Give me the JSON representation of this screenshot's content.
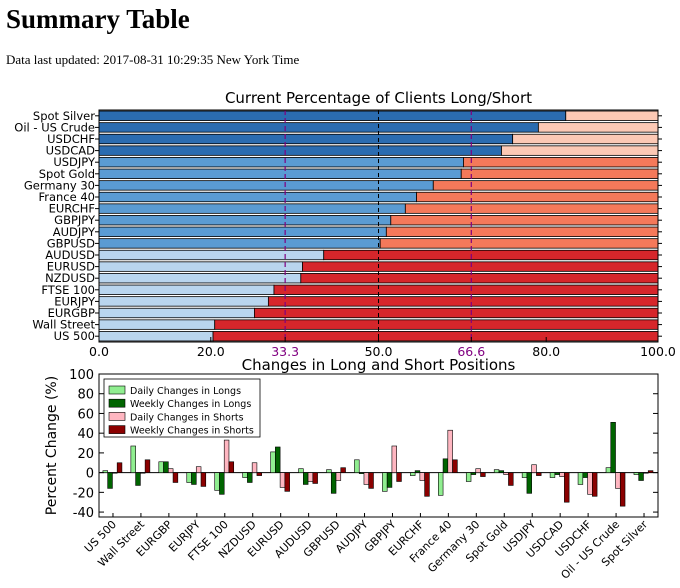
{
  "page": {
    "title": "Summary Table",
    "updated_label": "Data last updated:",
    "updated_value": "2017-08-31 10:29:35 New York Time"
  },
  "colors": {
    "long_dark": "#2b6cb0",
    "long_mid": "#5a9bd3",
    "long_light": "#b9d5ee",
    "short_light": "#fcc9b5",
    "short_mid": "#f4795a",
    "short_dark": "#d6262b",
    "daily_longs": "#90ee90",
    "weekly_longs": "#006400",
    "daily_shorts": "#ffb6c1",
    "weekly_shorts": "#8b0000",
    "marker_lines": "#800080"
  },
  "chart_data": [
    {
      "type": "bar",
      "orientation": "horizontal",
      "stacked": true,
      "title": "Current Percentage of Clients Long/Short",
      "categories": [
        "Spot Silver",
        "Oil - US Crude",
        "USDCHF",
        "USDCAD",
        "USDJPY",
        "Spot Gold",
        "Germany 30",
        "France 40",
        "EURCHF",
        "GBPJPY",
        "AUDJPY",
        "GBPUSD",
        "AUDUSD",
        "EURUSD",
        "NZDUSD",
        "FTSE 100",
        "EURJPY",
        "EURGBP",
        "Wall Street",
        "US 500"
      ],
      "long_values": [
        83.5,
        78.6,
        74.0,
        72.0,
        65.2,
        64.8,
        59.8,
        56.8,
        54.8,
        52.2,
        51.4,
        50.3,
        40.2,
        36.4,
        36.1,
        31.3,
        30.3,
        27.8,
        20.7,
        20.4
      ],
      "xlim": [
        0,
        100
      ],
      "xticks": [
        "0.0",
        "20.0",
        "33.3",
        "50.0",
        "66.6",
        "80.0",
        "100.0"
      ],
      "xtick_values": [
        0,
        20,
        33.3,
        50,
        66.6,
        80,
        100
      ],
      "highlight_ticks": [
        33.3,
        66.6
      ],
      "reference_line": 50,
      "grid": false
    },
    {
      "type": "bar",
      "title": "Changes in Long and Short Positions",
      "ylabel": "Percent Change (%)",
      "ylim": [
        -45,
        100
      ],
      "yticks": [
        "-40",
        "-20",
        "0",
        "20",
        "40",
        "60",
        "80",
        "100"
      ],
      "ytick_values": [
        -40,
        -20,
        0,
        20,
        40,
        60,
        80,
        100
      ],
      "legend_position": "top-left",
      "categories": [
        "US 500",
        "Wall Street",
        "EURGBP",
        "EURJPY",
        "FTSE 100",
        "NZDUSD",
        "EURUSD",
        "AUDUSD",
        "GBPUSD",
        "AUDJPY",
        "GBPJPY",
        "EURCHF",
        "France 40",
        "Germany 30",
        "Spot Gold",
        "USDJPY",
        "USDCAD",
        "USDCHF",
        "Oil - US Crude",
        "Spot Silver"
      ],
      "series": [
        {
          "name": "Daily Changes in Longs",
          "values": [
            2,
            27,
            11,
            -10,
            -18,
            -5,
            21,
            4,
            3,
            13,
            -19,
            -3,
            -23,
            -9,
            3,
            -5,
            -5,
            -12,
            5,
            -2
          ]
        },
        {
          "name": "Weekly Changes in Longs",
          "values": [
            -16,
            -13,
            11,
            -12,
            -22,
            -10,
            26,
            -12,
            -21,
            -1,
            -15,
            2,
            14,
            -2,
            2,
            -21,
            -2,
            -5,
            51,
            -8
          ]
        },
        {
          "name": "Daily Changes in Shorts",
          "values": [
            0,
            0,
            4,
            6,
            33,
            10,
            -15,
            -9,
            -8,
            -12,
            27,
            -8,
            43,
            4,
            -2,
            8,
            -4,
            -22,
            -16,
            0
          ]
        },
        {
          "name": "Weekly Changes in Shorts",
          "values": [
            10,
            13,
            -10,
            -14,
            11,
            -3,
            -19,
            -11,
            5,
            -16,
            -9,
            -24,
            13,
            -4,
            -13,
            -3,
            -30,
            -24,
            -34,
            2
          ]
        }
      ]
    }
  ]
}
